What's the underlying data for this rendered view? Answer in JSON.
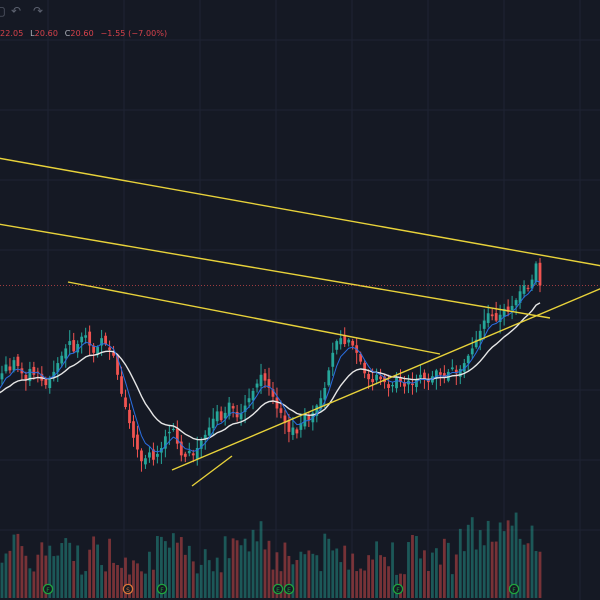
{
  "toolbar": {
    "icons": [
      "square-icon",
      "undo-icon",
      "redo-icon"
    ]
  },
  "legend": {
    "high_label": "",
    "high_value": "22.05",
    "low_label": "L",
    "low_value": "20.60",
    "close_label": "C",
    "close_value": "20.60",
    "change": "−1.55 (−7.00%)"
  },
  "colors": {
    "background": "#151924",
    "up": "#26a69a",
    "down": "#ef5350",
    "trendline": "#e8d23a",
    "ma_fast": "#2a6ee0",
    "ma_slow": "#e6e6e6",
    "event_badge": "#20a33e",
    "split_badge": "#d9763a",
    "last_price_line": "#ef5350"
  },
  "chart_data": {
    "type": "candlestick",
    "series": [
      {
        "name": "",
        "kind": "candles",
        "close": [
          13.1,
          14.0,
          14.6,
          15.2,
          14.8,
          15.5,
          15.1,
          14.6,
          14.2,
          14.9,
          14.5,
          14.7,
          14.1,
          13.8,
          14.3,
          14.7,
          15.3,
          15.8,
          16.3,
          16.8,
          16.1,
          16.6,
          17.1,
          17.2,
          16.5,
          16.0,
          16.4,
          17.0,
          16.6,
          16.2,
          15.8,
          14.5,
          13.2,
          12.3,
          11.2,
          10.2,
          9.4,
          8.6,
          8.8,
          9.2,
          8.7,
          9.1,
          9.5,
          10.3,
          10.6,
          10.8,
          9.8,
          9.0,
          8.9,
          9.3,
          9.0,
          9.5,
          10.0,
          10.4,
          10.9,
          11.5,
          12.0,
          11.4,
          11.9,
          12.6,
          12.2,
          11.6,
          11.9,
          12.4,
          12.9,
          13.4,
          13.9,
          14.5,
          14.1,
          13.6,
          13.0,
          12.2,
          11.9,
          11.2,
          10.6,
          10.9,
          10.5,
          11.2,
          11.8,
          11.4,
          11.9,
          12.4,
          12.9,
          13.6,
          14.8,
          16.0,
          16.8,
          17.0,
          16.6,
          16.9,
          16.5,
          16.0,
          15.4,
          14.6,
          14.2,
          14.0,
          14.5,
          14.2,
          14.0,
          13.6,
          13.8,
          14.3,
          14.0,
          13.7,
          14.1,
          13.8,
          14.2,
          14.5,
          14.2,
          14.0,
          14.4,
          14.8,
          14.5,
          14.3,
          14.7,
          15.0,
          14.6,
          14.9,
          15.3,
          15.8,
          16.3,
          16.9,
          17.5,
          18.2,
          18.7,
          18.5,
          18.2,
          18.6,
          19.0,
          18.8,
          19.2,
          19.6,
          20.2,
          20.6,
          20.4,
          21.0,
          22.1,
          20.6
        ]
      },
      {
        "name": "",
        "kind": "moving_average_fast"
      },
      {
        "name": "",
        "kind": "moving_average_slow"
      },
      {
        "name": "",
        "kind": "volume"
      }
    ],
    "events": [
      {
        "label": "F"
      },
      {
        "label": "S"
      },
      {
        "label": "F"
      },
      {
        "label": "E"
      },
      {
        "label": "E"
      },
      {
        "label": "F"
      },
      {
        "label": "F"
      }
    ],
    "trendlines": 5,
    "grid": true,
    "title": "",
    "xlabel": "",
    "ylabel": ""
  }
}
